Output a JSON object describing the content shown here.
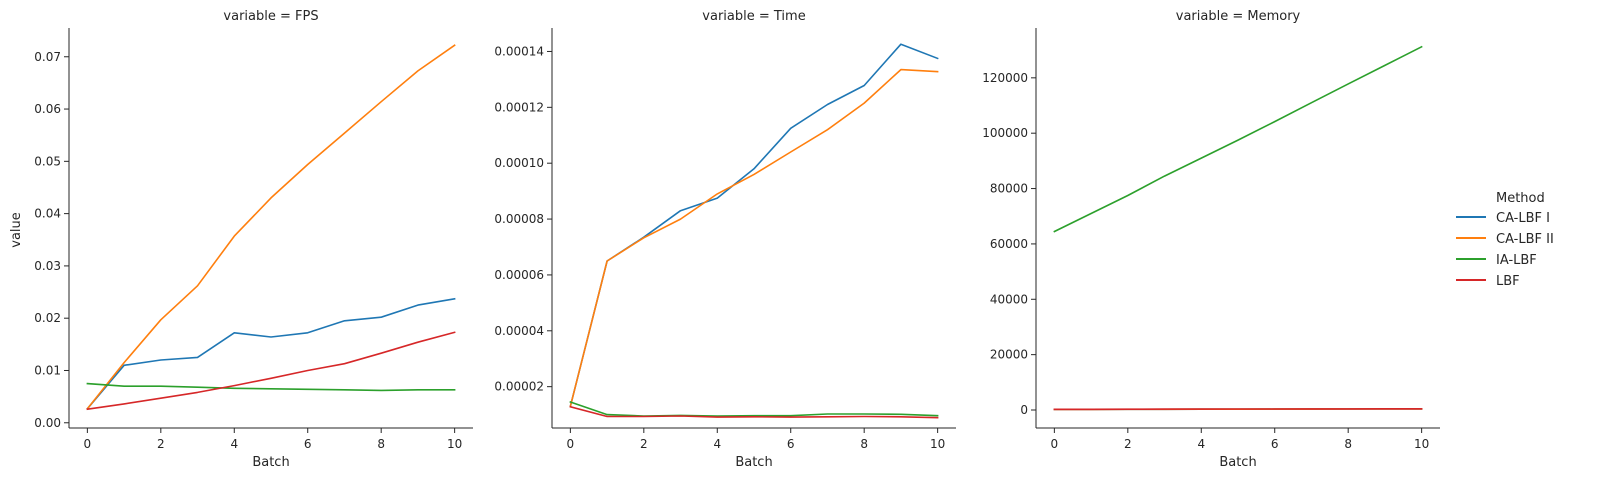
{
  "chart_data": {
    "type": "line",
    "facet_prefix": "variable = ",
    "ylabel": "value",
    "legend": {
      "title": "Method",
      "placement": "right"
    },
    "grid": false,
    "series_meta": [
      {
        "name": "CA-LBF I",
        "color": "#1f77b4"
      },
      {
        "name": "CA-LBF II",
        "color": "#ff7f0e"
      },
      {
        "name": "IA-LBF",
        "color": "#2ca02c"
      },
      {
        "name": "LBF",
        "color": "#d62728"
      }
    ],
    "panels": [
      {
        "facet": "FPS",
        "xlabel": "Batch",
        "xlim": [
          -0.5,
          10.5
        ],
        "xticks": [
          0,
          2,
          4,
          6,
          8,
          10
        ],
        "ylim": [
          -0.001,
          0.0755
        ],
        "yticks": [
          0.0,
          0.01,
          0.02,
          0.03,
          0.04,
          0.05,
          0.06,
          0.07
        ],
        "ytick_labels": [
          "0.00",
          "0.01",
          "0.02",
          "0.03",
          "0.04",
          "0.05",
          "0.06",
          "0.07"
        ],
        "x": [
          0,
          1,
          2,
          3,
          4,
          5,
          6,
          7,
          8,
          9,
          10
        ],
        "series": [
          {
            "name": "CA-LBF I",
            "values": [
              0.0027,
              0.011,
              0.012,
              0.0125,
              0.0172,
              0.0164,
              0.0172,
              0.0195,
              0.0202,
              0.0225,
              0.0237
            ]
          },
          {
            "name": "CA-LBF II",
            "values": [
              0.0027,
              0.0115,
              0.0197,
              0.0262,
              0.0357,
              0.043,
              0.0494,
              0.0554,
              0.0614,
              0.0673,
              0.0722
            ]
          },
          {
            "name": "IA-LBF",
            "values": [
              0.0075,
              0.007,
              0.007,
              0.0068,
              0.0066,
              0.0065,
              0.0064,
              0.0063,
              0.0062,
              0.0063,
              0.0063
            ]
          },
          {
            "name": "LBF",
            "values": [
              0.0026,
              0.0036,
              0.0047,
              0.0058,
              0.0071,
              0.0085,
              0.01,
              0.0113,
              0.0133,
              0.0154,
              0.0173
            ]
          }
        ]
      },
      {
        "facet": "Time",
        "xlabel": "Batch",
        "xlim": [
          -0.5,
          10.5
        ],
        "xticks": [
          0,
          2,
          4,
          6,
          8,
          10
        ],
        "ylim": [
          5.2e-06,
          0.0001484
        ],
        "yticks": [
          2e-05,
          4e-05,
          6e-05,
          8e-05,
          0.0001,
          0.00012,
          0.00014
        ],
        "ytick_labels": [
          "0.00002",
          "0.00004",
          "0.00006",
          "0.00008",
          "0.00010",
          "0.00012",
          "0.00014"
        ],
        "x": [
          0,
          1,
          2,
          3,
          4,
          5,
          6,
          7,
          8,
          9,
          10
        ],
        "series": [
          {
            "name": "CA-LBF I",
            "values": [
              1.3e-05,
              6.5e-05,
              7.35e-05,
              8.3e-05,
              8.75e-05,
              9.8e-05,
              0.0001125,
              0.000121,
              0.0001278,
              0.0001426,
              0.0001375
            ]
          },
          {
            "name": "CA-LBF II",
            "values": [
              1.3e-05,
              6.5e-05,
              7.33e-05,
              8e-05,
              8.9e-05,
              9.6e-05,
              0.000104,
              0.000112,
              0.0001215,
              0.0001335,
              0.0001328
            ]
          },
          {
            "name": "IA-LBF",
            "values": [
              1.45e-05,
              1e-05,
              9.5e-06,
              9.7e-06,
              9.5e-06,
              9.6e-06,
              9.6e-06,
              1.02e-05,
              1.02e-05,
              1.01e-05,
              9.6e-06
            ]
          },
          {
            "name": "LBF",
            "values": [
              1.28e-05,
              9.3e-06,
              9.3e-06,
              9.5e-06,
              9.1e-06,
              9.2e-06,
              9.1e-06,
              9.2e-06,
              9.3e-06,
              9.2e-06,
              8.9e-06
            ]
          }
        ]
      },
      {
        "facet": "Memory",
        "xlabel": "Batch",
        "xlim": [
          -0.5,
          10.5
        ],
        "xticks": [
          0,
          2,
          4,
          6,
          8,
          10
        ],
        "ylim": [
          -6500,
          138000
        ],
        "yticks": [
          0,
          20000,
          40000,
          60000,
          80000,
          100000,
          120000
        ],
        "ytick_labels": [
          "0",
          "20000",
          "40000",
          "60000",
          "80000",
          "100000",
          "120000"
        ],
        "x": [
          0,
          1,
          2,
          3,
          4,
          5,
          6,
          7,
          8,
          9,
          10
        ],
        "series": [
          {
            "name": "CA-LBF I",
            "values": [
              200,
              220,
              240,
              260,
              280,
              300,
              320,
              340,
              360,
              380,
              400
            ]
          },
          {
            "name": "CA-LBF II",
            "values": [
              200,
              220,
              240,
              260,
              280,
              300,
              320,
              340,
              360,
              380,
              400
            ]
          },
          {
            "name": "IA-LBF",
            "values": [
              64500,
              71000,
              77500,
              84500,
              91000,
              97500,
              104200,
              111000,
              117800,
              124500,
              131200
            ]
          },
          {
            "name": "LBF",
            "values": [
              250,
              270,
              290,
              310,
              330,
              350,
              370,
              390,
              410,
              430,
              450
            ]
          }
        ]
      }
    ]
  }
}
